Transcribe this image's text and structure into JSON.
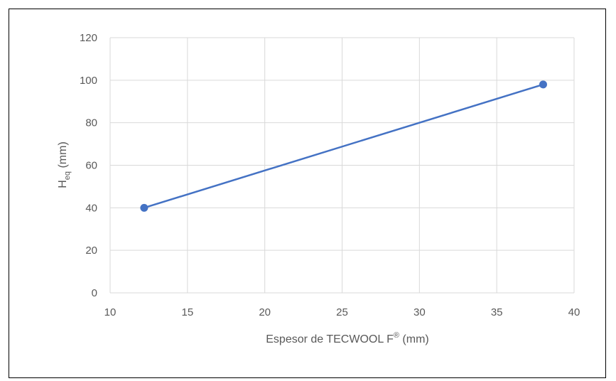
{
  "chart_data": {
    "type": "line",
    "title": "",
    "xlabel": {
      "main": "Espesor de TECWOOL F",
      "sup": "®",
      "unit": " (mm)"
    },
    "ylabel": {
      "main": "H",
      "sub": "eq",
      "unit": " (mm)"
    },
    "xlim": [
      10,
      40
    ],
    "ylim": [
      0,
      120
    ],
    "xticks": [
      10,
      15,
      20,
      25,
      30,
      35,
      40
    ],
    "yticks": [
      0,
      20,
      40,
      60,
      80,
      100,
      120
    ],
    "grid": true,
    "legend": "none",
    "series": [
      {
        "color": "#4472c4",
        "points": [
          {
            "x": 12.2,
            "y": 40
          },
          {
            "x": 38,
            "y": 98
          }
        ]
      }
    ]
  }
}
